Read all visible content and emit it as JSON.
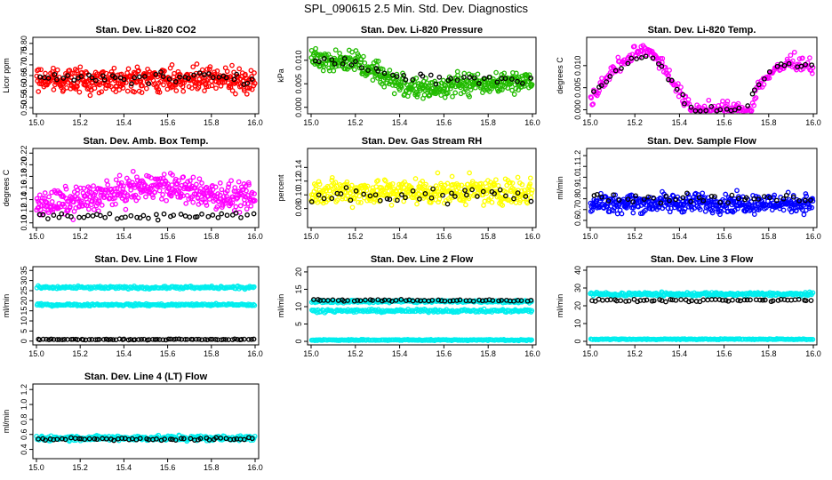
{
  "page": {
    "title": "SPL_090615  2.5 Min. Std. Dev. Diagnostics"
  },
  "colors": {
    "co2": "#ff0000",
    "pressure": "#22bb00",
    "li820_temp": "#ff00ff",
    "amb_box_temp": "#ff00ff",
    "rh": "#ffff00",
    "sample_flow": "#0000ff",
    "line_flows": "#00eeee",
    "overlay": "#000000"
  },
  "chart_data": [
    {
      "type": "scatter",
      "title": "Stan. Dev. Li-820 CO2",
      "ylabel": "Licor ppm",
      "color": "#ff0000",
      "xlim": [
        15.0,
        16.0
      ],
      "ylim": [
        0.48,
        0.82
      ],
      "xticks": [
        "15.0",
        "15.2",
        "15.4",
        "15.6",
        "15.8",
        "16.0"
      ],
      "yticks": [
        "0.50",
        "0.55",
        "0.60",
        "0.65",
        "0.70",
        "0.75",
        "0.80"
      ],
      "series": [
        {
          "kind": "band",
          "y_mean": 0.63,
          "spread": 0.08,
          "count": 420,
          "color": "#ff0000"
        },
        {
          "kind": "band",
          "y_mean": 0.64,
          "spread": 0.04,
          "count": 45,
          "color": "#000000"
        }
      ]
    },
    {
      "type": "scatter",
      "title": "Stan. Dev. Li-820 Pressure",
      "ylabel": "kPa",
      "color": "#22bb00",
      "xlim": [
        15.0,
        16.0
      ],
      "ylim": [
        -0.001,
        0.0145
      ],
      "xticks": [
        "15.0",
        "15.2",
        "15.4",
        "15.6",
        "15.8",
        "16.0"
      ],
      "yticks": [
        "0.000",
        "0.005",
        "0.010"
      ],
      "series": [
        {
          "kind": "curve",
          "x": [
            15.0,
            15.2,
            15.3,
            15.4,
            15.5,
            15.6,
            15.7,
            15.8,
            16.0
          ],
          "y": [
            0.0105,
            0.0095,
            0.0075,
            0.005,
            0.0035,
            0.0045,
            0.005,
            0.005,
            0.006
          ],
          "spread": 0.0035,
          "count": 420,
          "color": "#22bb00"
        },
        {
          "kind": "curve",
          "x": [
            15.0,
            15.2,
            15.4,
            15.6,
            15.8,
            16.0
          ],
          "y": [
            0.0105,
            0.0095,
            0.0065,
            0.006,
            0.006,
            0.006
          ],
          "spread": 0.0015,
          "count": 40,
          "color": "#000000"
        }
      ]
    },
    {
      "type": "scatter",
      "title": "Stan. Dev. Li-820 Temp.",
      "ylabel": "degrees C",
      "color": "#ff00ff",
      "xlim": [
        15.0,
        16.0
      ],
      "ylim": [
        -0.0005,
        0.016
      ],
      "xticks": [
        "15.0",
        "15.2",
        "15.4",
        "15.6",
        "15.8",
        "16.0"
      ],
      "yticks": [
        "0.000",
        "0.005",
        "0.010"
      ],
      "series": [
        {
          "kind": "curve",
          "x": [
            15.0,
            15.05,
            15.15,
            15.25,
            15.3,
            15.35,
            15.4,
            15.45,
            15.72,
            15.75,
            15.8,
            15.9,
            16.0
          ],
          "y": [
            0.0015,
            0.006,
            0.011,
            0.014,
            0.012,
            0.008,
            0.004,
            0.0,
            0.0,
            0.005,
            0.008,
            0.011,
            0.01
          ],
          "spread": 0.0025,
          "count": 260,
          "color": "#ff00ff"
        },
        {
          "kind": "curve",
          "x": [
            15.0,
            15.1,
            15.2,
            15.3,
            15.4,
            15.45,
            15.7,
            15.75,
            15.85,
            16.0
          ],
          "y": [
            0.003,
            0.008,
            0.012,
            0.011,
            0.004,
            0.0,
            0.0,
            0.006,
            0.01,
            0.01
          ],
          "spread": 0.001,
          "count": 45,
          "color": "#000000"
        }
      ]
    },
    {
      "type": "scatter",
      "title": "Stan. Dev. Amb. Box Temp.",
      "ylabel": "degrees C",
      "color": "#ff00ff",
      "xlim": [
        15.0,
        16.0
      ],
      "ylim": [
        0.095,
        0.225
      ],
      "xticks": [
        "15.0",
        "15.2",
        "15.4",
        "15.6",
        "15.8",
        "16.0"
      ],
      "yticks": [
        "0.10",
        "0.12",
        "0.14",
        "0.16",
        "0.18",
        "0.20",
        "0.22"
      ],
      "series": [
        {
          "kind": "curve",
          "x": [
            15.0,
            15.2,
            15.4,
            15.55,
            15.7,
            15.85,
            16.0
          ],
          "y": [
            0.13,
            0.14,
            0.155,
            0.165,
            0.155,
            0.145,
            0.14
          ],
          "spread": 0.035,
          "count": 420,
          "color": "#ff00ff"
        },
        {
          "kind": "band",
          "y_mean": 0.112,
          "spread": 0.01,
          "count": 45,
          "color": "#000000"
        }
      ]
    },
    {
      "type": "scatter",
      "title": "Stan. Dev. Gas Stream RH",
      "ylabel": "percent",
      "color": "#ffff00",
      "xlim": [
        15.0,
        16.0
      ],
      "ylim": [
        0.055,
        0.165
      ],
      "xticks": [
        "15.0",
        "15.2",
        "15.4",
        "15.6",
        "15.8",
        "16.0"
      ],
      "yticks": [
        "0.08",
        "0.10",
        "0.12",
        "0.14"
      ],
      "series": [
        {
          "kind": "band",
          "y_mean": 0.105,
          "spread": 0.028,
          "count": 420,
          "color": "#ffff00"
        },
        {
          "kind": "band",
          "y_mean": 0.1,
          "spread": 0.02,
          "count": 40,
          "color": "#000000"
        }
      ]
    },
    {
      "type": "scatter",
      "title": "Stan. Dev. Sample Flow",
      "ylabel": "ml/min",
      "color": "#0000ff",
      "xlim": [
        15.0,
        16.0
      ],
      "ylim": [
        0.55,
        1.25
      ],
      "xticks": [
        "15.0",
        "15.2",
        "15.4",
        "15.6",
        "15.8",
        "16.0"
      ],
      "yticks": [
        "0.6",
        "0.7",
        "0.8",
        "0.9",
        "1.0",
        "1.1",
        "1.2"
      ],
      "series": [
        {
          "kind": "band",
          "y_mean": 0.76,
          "spread": 0.13,
          "count": 420,
          "color": "#0000ff"
        },
        {
          "kind": "band",
          "y_mean": 0.8,
          "spread": 0.08,
          "count": 40,
          "color": "#000000"
        }
      ]
    },
    {
      "type": "scatter",
      "title": "Stan. Dev. Line 1 Flow",
      "ylabel": "ml/min",
      "color": "#00eeee",
      "xlim": [
        15.0,
        16.0
      ],
      "ylim": [
        -1,
        36
      ],
      "xticks": [
        "15.0",
        "15.2",
        "15.4",
        "15.6",
        "15.8",
        "16.0"
      ],
      "yticks": [
        "0",
        "5",
        "10",
        "15",
        "20",
        "25",
        "30",
        "35"
      ],
      "series": [
        {
          "kind": "band",
          "y_mean": 26.5,
          "spread": 1.0,
          "count": 200,
          "color": "#00eeee"
        },
        {
          "kind": "band",
          "y_mean": 18.0,
          "spread": 0.8,
          "count": 200,
          "color": "#00eeee"
        },
        {
          "kind": "band",
          "y_mean": 0.8,
          "spread": 0.3,
          "count": 80,
          "color": "#000000"
        }
      ]
    },
    {
      "type": "scatter",
      "title": "Stan. Dev. Line 2 Flow",
      "ylabel": "ml/min",
      "color": "#00eeee",
      "xlim": [
        15.0,
        16.0
      ],
      "ylim": [
        -0.5,
        21
      ],
      "xticks": [
        "15.0",
        "15.2",
        "15.4",
        "15.6",
        "15.8",
        "16.0"
      ],
      "yticks": [
        "0",
        "5",
        "10",
        "15",
        "20"
      ],
      "series": [
        {
          "kind": "band",
          "y_mean": 11.5,
          "spread": 0.6,
          "count": 200,
          "color": "#00eeee"
        },
        {
          "kind": "band",
          "y_mean": 8.8,
          "spread": 0.6,
          "count": 200,
          "color": "#00eeee"
        },
        {
          "kind": "band",
          "y_mean": 0.4,
          "spread": 0.25,
          "count": 200,
          "color": "#00eeee"
        },
        {
          "kind": "band",
          "y_mean": 11.8,
          "spread": 0.4,
          "count": 55,
          "color": "#000000"
        }
      ]
    },
    {
      "type": "scatter",
      "title": "Stan. Dev. Line 3 Flow",
      "ylabel": "ml/min",
      "color": "#00eeee",
      "xlim": [
        15.0,
        16.0
      ],
      "ylim": [
        -1,
        41
      ],
      "xticks": [
        "15.0",
        "15.2",
        "15.4",
        "15.6",
        "15.8",
        "16.0"
      ],
      "yticks": [
        "0",
        "10",
        "20",
        "30",
        "40"
      ],
      "series": [
        {
          "kind": "band",
          "y_mean": 26.5,
          "spread": 1.5,
          "count": 260,
          "color": "#00eeee"
        },
        {
          "kind": "band",
          "y_mean": 1.2,
          "spread": 0.4,
          "count": 200,
          "color": "#00eeee"
        },
        {
          "kind": "band",
          "y_mean": 23.0,
          "spread": 1.0,
          "count": 60,
          "color": "#000000"
        }
      ]
    },
    {
      "type": "scatter",
      "title": "Stan. Dev. Line 4 (LT) Flow",
      "ylabel": "ml/min",
      "color": "#00eeee",
      "xlim": [
        15.0,
        16.0
      ],
      "ylim": [
        0.3,
        1.25
      ],
      "xticks": [
        "15.0",
        "15.2",
        "15.4",
        "15.6",
        "15.8",
        "16.0"
      ],
      "yticks": [
        "0.4",
        "0.6",
        "0.8",
        "1.0",
        "1.2"
      ],
      "series": [
        {
          "kind": "band",
          "y_mean": 0.55,
          "spread": 0.05,
          "count": 300,
          "color": "#00eeee"
        },
        {
          "kind": "band",
          "y_mean": 0.54,
          "spread": 0.03,
          "count": 55,
          "color": "#000000"
        }
      ]
    }
  ]
}
